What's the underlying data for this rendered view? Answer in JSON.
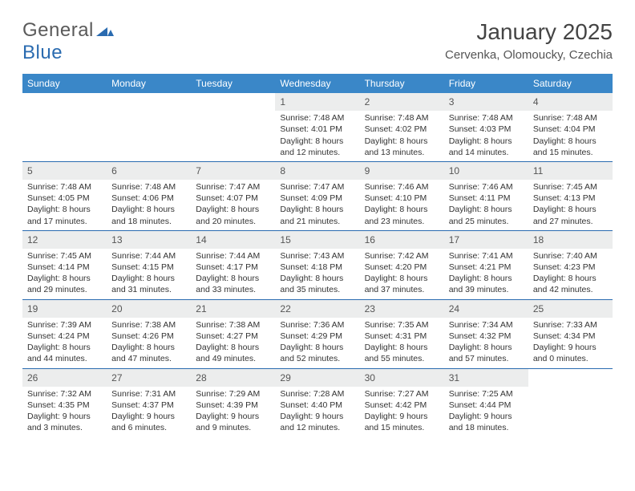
{
  "logo": {
    "text1": "General",
    "text2": "Blue"
  },
  "title": "January 2025",
  "location": "Cervenka, Olomoucky, Czechia",
  "colors": {
    "header_bg": "#3a87c8",
    "week_rule": "#2a6bb0",
    "daynum_bg": "#eceded",
    "logo_gray": "#5a5a5a",
    "logo_blue": "#2a6bb0"
  },
  "days_of_week": [
    "Sunday",
    "Monday",
    "Tuesday",
    "Wednesday",
    "Thursday",
    "Friday",
    "Saturday"
  ],
  "weeks": [
    [
      {
        "empty": true
      },
      {
        "empty": true
      },
      {
        "empty": true
      },
      {
        "num": "1",
        "sunrise": "Sunrise: 7:48 AM",
        "sunset": "Sunset: 4:01 PM",
        "daylight1": "Daylight: 8 hours",
        "daylight2": "and 12 minutes."
      },
      {
        "num": "2",
        "sunrise": "Sunrise: 7:48 AM",
        "sunset": "Sunset: 4:02 PM",
        "daylight1": "Daylight: 8 hours",
        "daylight2": "and 13 minutes."
      },
      {
        "num": "3",
        "sunrise": "Sunrise: 7:48 AM",
        "sunset": "Sunset: 4:03 PM",
        "daylight1": "Daylight: 8 hours",
        "daylight2": "and 14 minutes."
      },
      {
        "num": "4",
        "sunrise": "Sunrise: 7:48 AM",
        "sunset": "Sunset: 4:04 PM",
        "daylight1": "Daylight: 8 hours",
        "daylight2": "and 15 minutes."
      }
    ],
    [
      {
        "num": "5",
        "sunrise": "Sunrise: 7:48 AM",
        "sunset": "Sunset: 4:05 PM",
        "daylight1": "Daylight: 8 hours",
        "daylight2": "and 17 minutes."
      },
      {
        "num": "6",
        "sunrise": "Sunrise: 7:48 AM",
        "sunset": "Sunset: 4:06 PM",
        "daylight1": "Daylight: 8 hours",
        "daylight2": "and 18 minutes."
      },
      {
        "num": "7",
        "sunrise": "Sunrise: 7:47 AM",
        "sunset": "Sunset: 4:07 PM",
        "daylight1": "Daylight: 8 hours",
        "daylight2": "and 20 minutes."
      },
      {
        "num": "8",
        "sunrise": "Sunrise: 7:47 AM",
        "sunset": "Sunset: 4:09 PM",
        "daylight1": "Daylight: 8 hours",
        "daylight2": "and 21 minutes."
      },
      {
        "num": "9",
        "sunrise": "Sunrise: 7:46 AM",
        "sunset": "Sunset: 4:10 PM",
        "daylight1": "Daylight: 8 hours",
        "daylight2": "and 23 minutes."
      },
      {
        "num": "10",
        "sunrise": "Sunrise: 7:46 AM",
        "sunset": "Sunset: 4:11 PM",
        "daylight1": "Daylight: 8 hours",
        "daylight2": "and 25 minutes."
      },
      {
        "num": "11",
        "sunrise": "Sunrise: 7:45 AM",
        "sunset": "Sunset: 4:13 PM",
        "daylight1": "Daylight: 8 hours",
        "daylight2": "and 27 minutes."
      }
    ],
    [
      {
        "num": "12",
        "sunrise": "Sunrise: 7:45 AM",
        "sunset": "Sunset: 4:14 PM",
        "daylight1": "Daylight: 8 hours",
        "daylight2": "and 29 minutes."
      },
      {
        "num": "13",
        "sunrise": "Sunrise: 7:44 AM",
        "sunset": "Sunset: 4:15 PM",
        "daylight1": "Daylight: 8 hours",
        "daylight2": "and 31 minutes."
      },
      {
        "num": "14",
        "sunrise": "Sunrise: 7:44 AM",
        "sunset": "Sunset: 4:17 PM",
        "daylight1": "Daylight: 8 hours",
        "daylight2": "and 33 minutes."
      },
      {
        "num": "15",
        "sunrise": "Sunrise: 7:43 AM",
        "sunset": "Sunset: 4:18 PM",
        "daylight1": "Daylight: 8 hours",
        "daylight2": "and 35 minutes."
      },
      {
        "num": "16",
        "sunrise": "Sunrise: 7:42 AM",
        "sunset": "Sunset: 4:20 PM",
        "daylight1": "Daylight: 8 hours",
        "daylight2": "and 37 minutes."
      },
      {
        "num": "17",
        "sunrise": "Sunrise: 7:41 AM",
        "sunset": "Sunset: 4:21 PM",
        "daylight1": "Daylight: 8 hours",
        "daylight2": "and 39 minutes."
      },
      {
        "num": "18",
        "sunrise": "Sunrise: 7:40 AM",
        "sunset": "Sunset: 4:23 PM",
        "daylight1": "Daylight: 8 hours",
        "daylight2": "and 42 minutes."
      }
    ],
    [
      {
        "num": "19",
        "sunrise": "Sunrise: 7:39 AM",
        "sunset": "Sunset: 4:24 PM",
        "daylight1": "Daylight: 8 hours",
        "daylight2": "and 44 minutes."
      },
      {
        "num": "20",
        "sunrise": "Sunrise: 7:38 AM",
        "sunset": "Sunset: 4:26 PM",
        "daylight1": "Daylight: 8 hours",
        "daylight2": "and 47 minutes."
      },
      {
        "num": "21",
        "sunrise": "Sunrise: 7:38 AM",
        "sunset": "Sunset: 4:27 PM",
        "daylight1": "Daylight: 8 hours",
        "daylight2": "and 49 minutes."
      },
      {
        "num": "22",
        "sunrise": "Sunrise: 7:36 AM",
        "sunset": "Sunset: 4:29 PM",
        "daylight1": "Daylight: 8 hours",
        "daylight2": "and 52 minutes."
      },
      {
        "num": "23",
        "sunrise": "Sunrise: 7:35 AM",
        "sunset": "Sunset: 4:31 PM",
        "daylight1": "Daylight: 8 hours",
        "daylight2": "and 55 minutes."
      },
      {
        "num": "24",
        "sunrise": "Sunrise: 7:34 AM",
        "sunset": "Sunset: 4:32 PM",
        "daylight1": "Daylight: 8 hours",
        "daylight2": "and 57 minutes."
      },
      {
        "num": "25",
        "sunrise": "Sunrise: 7:33 AM",
        "sunset": "Sunset: 4:34 PM",
        "daylight1": "Daylight: 9 hours",
        "daylight2": "and 0 minutes."
      }
    ],
    [
      {
        "num": "26",
        "sunrise": "Sunrise: 7:32 AM",
        "sunset": "Sunset: 4:35 PM",
        "daylight1": "Daylight: 9 hours",
        "daylight2": "and 3 minutes."
      },
      {
        "num": "27",
        "sunrise": "Sunrise: 7:31 AM",
        "sunset": "Sunset: 4:37 PM",
        "daylight1": "Daylight: 9 hours",
        "daylight2": "and 6 minutes."
      },
      {
        "num": "28",
        "sunrise": "Sunrise: 7:29 AM",
        "sunset": "Sunset: 4:39 PM",
        "daylight1": "Daylight: 9 hours",
        "daylight2": "and 9 minutes."
      },
      {
        "num": "29",
        "sunrise": "Sunrise: 7:28 AM",
        "sunset": "Sunset: 4:40 PM",
        "daylight1": "Daylight: 9 hours",
        "daylight2": "and 12 minutes."
      },
      {
        "num": "30",
        "sunrise": "Sunrise: 7:27 AM",
        "sunset": "Sunset: 4:42 PM",
        "daylight1": "Daylight: 9 hours",
        "daylight2": "and 15 minutes."
      },
      {
        "num": "31",
        "sunrise": "Sunrise: 7:25 AM",
        "sunset": "Sunset: 4:44 PM",
        "daylight1": "Daylight: 9 hours",
        "daylight2": "and 18 minutes."
      },
      {
        "empty": true
      }
    ]
  ]
}
